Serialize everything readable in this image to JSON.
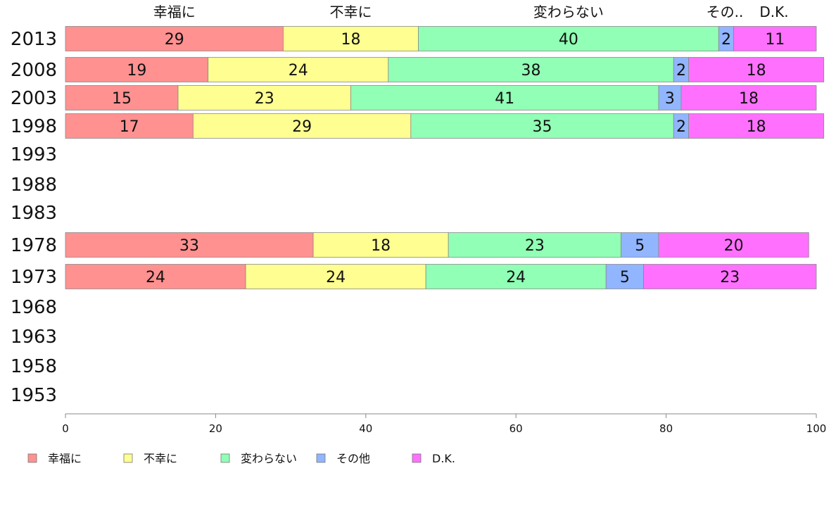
{
  "chart_data": {
    "type": "bar",
    "orientation": "horizontal",
    "stacked": true,
    "categories": [
      "2013",
      "2008",
      "2003",
      "1998",
      "1993",
      "1988",
      "1983",
      "1978",
      "1973",
      "1968",
      "1963",
      "1958",
      "1953"
    ],
    "series": [
      {
        "name": "幸福に",
        "color": "#ff9191",
        "values": [
          29,
          19,
          15,
          17,
          null,
          null,
          null,
          33,
          24,
          null,
          null,
          null,
          null
        ]
      },
      {
        "name": "不幸に",
        "color": "#ffff91",
        "values": [
          18,
          24,
          23,
          29,
          null,
          null,
          null,
          18,
          24,
          null,
          null,
          null,
          null
        ]
      },
      {
        "name": "変わらない",
        "color": "#91ffb5",
        "values": [
          40,
          38,
          41,
          35,
          null,
          null,
          null,
          23,
          24,
          null,
          null,
          null,
          null
        ]
      },
      {
        "name": "その他",
        "color": "#91b5ff",
        "values": [
          2,
          2,
          3,
          2,
          null,
          null,
          null,
          5,
          5,
          null,
          null,
          null,
          null
        ]
      },
      {
        "name": "D.K.",
        "color": "#ff70ff",
        "values": [
          11,
          18,
          18,
          18,
          null,
          null,
          null,
          20,
          23,
          null,
          null,
          null,
          null
        ]
      }
    ],
    "top_labels": [
      "幸福に",
      "不幸に",
      "変わらない",
      "その..",
      "D.K."
    ],
    "xlim": [
      0,
      100
    ],
    "xticks": [
      0,
      20,
      40,
      60,
      80,
      100
    ],
    "grid": false,
    "legend_position": "bottom-left"
  }
}
